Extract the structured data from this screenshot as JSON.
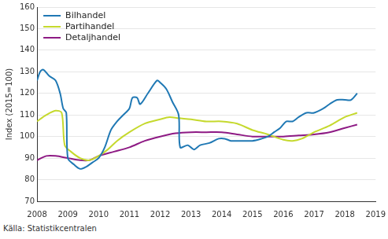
{
  "chart_data": {
    "type": "line",
    "y_label": "Index (2015=100)",
    "source": "Källa: Statistikcentralen",
    "xlim": [
      2008,
      2019
    ],
    "xticks": [
      2008,
      2009,
      2010,
      2011,
      2012,
      2013,
      2014,
      2015,
      2016,
      2017,
      2018,
      2019
    ],
    "ylim": [
      70,
      160
    ],
    "yticks": [
      70,
      80,
      90,
      100,
      110,
      120,
      130,
      140,
      150,
      160
    ],
    "grid": true,
    "legend": "upper left",
    "series": [
      {
        "name": "Bilhandel",
        "color": "#1f78b4",
        "x": [
          2008.0,
          2008.1,
          2008.2,
          2008.4,
          2008.6,
          2008.75,
          2008.85,
          2008.95,
          2009.0,
          2009.2,
          2009.4,
          2009.6,
          2009.8,
          2010.0,
          2010.2,
          2010.4,
          2010.6,
          2010.8,
          2011.0,
          2011.1,
          2011.25,
          2011.35,
          2011.6,
          2011.9,
          2012.0,
          2012.2,
          2012.4,
          2012.6,
          2012.65,
          2012.9,
          2013.1,
          2013.3,
          2013.6,
          2013.9,
          2014.1,
          2014.3,
          2014.6,
          2015.0,
          2015.3,
          2015.5,
          2015.7,
          2015.9,
          2016.1,
          2016.3,
          2016.5,
          2016.75,
          2017.0,
          2017.3,
          2017.5,
          2017.75,
          2018.0,
          2018.2,
          2018.4
        ],
        "values": [
          126,
          130,
          131,
          128,
          126,
          120,
          113,
          111,
          90,
          87,
          85,
          86,
          88,
          90,
          95,
          103,
          107,
          110,
          113,
          118,
          118,
          115,
          120,
          126,
          125,
          122,
          116,
          110,
          95,
          96,
          94,
          96,
          97,
          99,
          99,
          98,
          98,
          98,
          99,
          100,
          102,
          104,
          107,
          107,
          109,
          111,
          111,
          113,
          115,
          117,
          117,
          117,
          120
        ]
      },
      {
        "name": "Partihandel",
        "color": "#c5d92d",
        "x": [
          2008.0,
          2008.3,
          2008.6,
          2008.8,
          2008.9,
          2009.1,
          2009.4,
          2009.7,
          2010.0,
          2010.3,
          2010.6,
          2011.0,
          2011.5,
          2012.0,
          2012.3,
          2012.6,
          2013.0,
          2013.5,
          2014.0,
          2014.5,
          2015.0,
          2015.5,
          2016.0,
          2016.3,
          2016.6,
          2017.0,
          2017.5,
          2018.0,
          2018.4
        ],
        "values": [
          107,
          110,
          112,
          111,
          96,
          93,
          90,
          89,
          91,
          94,
          98,
          102,
          106,
          108,
          109,
          108.5,
          108,
          107,
          107,
          106,
          103,
          101,
          98.5,
          98,
          99,
          102,
          105,
          109,
          111
        ]
      },
      {
        "name": "Detaljhandel",
        "color": "#8e1a84",
        "x": [
          2008.0,
          2008.3,
          2008.6,
          2009.0,
          2009.4,
          2009.7,
          2010.0,
          2010.5,
          2011.0,
          2011.5,
          2012.0,
          2012.5,
          2013.0,
          2013.5,
          2014.0,
          2014.5,
          2015.0,
          2015.5,
          2016.0,
          2016.5,
          2017.0,
          2017.5,
          2018.0,
          2018.4
        ],
        "values": [
          89,
          91,
          91,
          90,
          89,
          89,
          91,
          93,
          95,
          98,
          100,
          101.5,
          102,
          102,
          102,
          101,
          100,
          100,
          100,
          100.5,
          101,
          102,
          104,
          105.5
        ]
      }
    ]
  }
}
